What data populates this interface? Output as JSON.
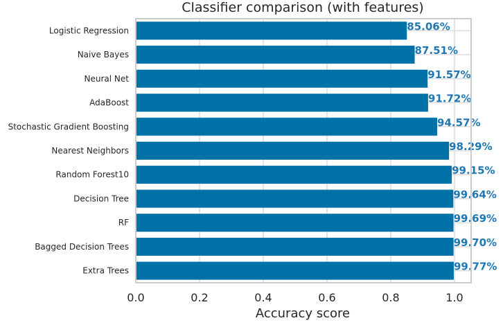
{
  "chart_data": {
    "type": "bar",
    "orientation": "horizontal",
    "title": "Classifier comparison (with features)",
    "xlabel": "Accuracy score",
    "ylabel": "",
    "xlim": [
      0,
      1.05
    ],
    "xticks": [
      0.0,
      0.2,
      0.4,
      0.6,
      0.8,
      1.0
    ],
    "xtick_labels": [
      "0.0",
      "0.2",
      "0.4",
      "0.6",
      "0.8",
      "1.0"
    ],
    "grid": true,
    "categories": [
      "Logistic Regression",
      "Naive Bayes",
      "Neural Net",
      "AdaBoost",
      "Stochastic Gradient Boosting",
      "Nearest Neighbors",
      "Random Forest10",
      "Decision Tree",
      "RF",
      "Bagged Decision Trees",
      "Extra Trees"
    ],
    "values": [
      0.8506,
      0.8751,
      0.9157,
      0.9172,
      0.9457,
      0.9829,
      0.9915,
      0.9964,
      0.9969,
      0.997,
      0.9977
    ],
    "data_labels": [
      "85.06%",
      "87.51%",
      "91.57%",
      "91.72%",
      "94.57%",
      "98.29%",
      "99.15%",
      "99.64%",
      "99.69%",
      "99.70%",
      "99.77%"
    ],
    "colors": {
      "bar": "#0072A8",
      "label": "#1F77B4",
      "grid": "#DCDCDC",
      "frame": "#CCCCCC",
      "text": "#262626"
    }
  }
}
